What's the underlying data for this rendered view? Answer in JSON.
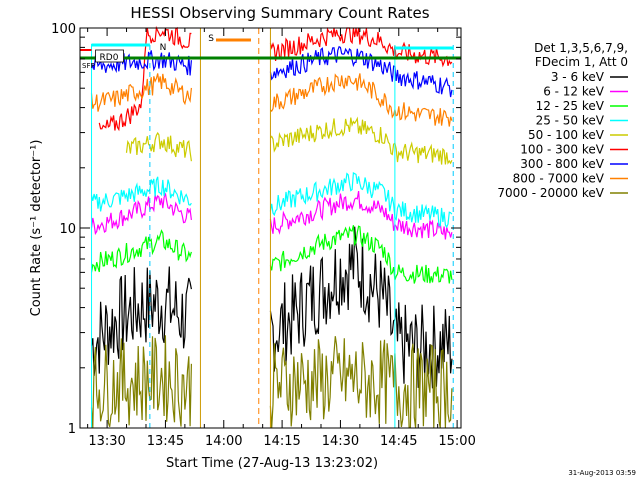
{
  "chart_data": {
    "type": "line",
    "title": "HESSI Observing Summary Count Rates",
    "xlabel": "Start Time (27-Aug-13 13:23:02)",
    "ylabel": "Count Rate (s⁻¹ detector⁻¹)",
    "y_scale": "log",
    "ylim": [
      1,
      100
    ],
    "xlim": [
      "13:23:02",
      "15:01:00"
    ],
    "x_ticks": [
      "13:30",
      "13:45",
      "14:00",
      "14:15",
      "14:30",
      "14:45",
      "15:00"
    ],
    "y_ticks": [
      "1",
      "10",
      "100"
    ],
    "grid": false,
    "legend_position": "right",
    "legend_header": [
      "Det 1,3,5,6,7,9,",
      "FDecim 1, Att 0"
    ],
    "timestamp": "31-Aug-2013 03:59",
    "annotations": {
      "rd_label": "RD0",
      "n_label": "N",
      "s_label": "S",
      "sfp_label": "SFP"
    },
    "data_gaps": [
      [
        "13:54",
        "14:12"
      ]
    ],
    "series": [
      {
        "name": "3 - 6 keV",
        "color": "#000000",
        "x": [
          "13:26",
          "13:32",
          "13:38",
          "13:44",
          "13:48",
          "13:52",
          "14:12",
          "14:15",
          "14:18",
          "14:22",
          "14:26",
          "14:30",
          "14:34",
          "14:38",
          "14:41",
          "14:44",
          "14:50",
          "14:56",
          "14:59"
        ],
        "values": [
          2.6,
          3.4,
          4.0,
          4.3,
          3.8,
          3.4,
          3.0,
          3.3,
          3.6,
          4.4,
          5.1,
          6.2,
          6.6,
          5.2,
          4.4,
          2.6,
          2.5,
          2.6,
          2.6
        ]
      },
      {
        "name": "6 - 12 keV",
        "color": "#ff00ff",
        "x": [
          "13:26",
          "13:32",
          "13:38",
          "13:44",
          "13:48",
          "13:52",
          "14:12",
          "14:15",
          "14:18",
          "14:22",
          "14:26",
          "14:30",
          "14:34",
          "14:38",
          "14:41",
          "14:44",
          "14:50",
          "14:56",
          "14:59"
        ],
        "values": [
          10.2,
          11.0,
          12.2,
          13.8,
          12.2,
          11.0,
          10.2,
          10.6,
          11.2,
          11.8,
          12.6,
          13.4,
          14.0,
          12.9,
          12.2,
          10.4,
          10.0,
          9.6,
          9.2
        ]
      },
      {
        "name": "12 - 25 keV",
        "color": "#00ff00",
        "x": [
          "13:26",
          "13:32",
          "13:38",
          "13:44",
          "13:48",
          "13:52",
          "14:12",
          "14:15",
          "14:18",
          "14:22",
          "14:26",
          "14:30",
          "14:34",
          "14:38",
          "14:41",
          "14:44",
          "14:50",
          "14:56",
          "14:59"
        ],
        "values": [
          6.6,
          7.1,
          7.9,
          8.7,
          7.8,
          7.0,
          6.4,
          6.8,
          7.3,
          7.9,
          8.5,
          9.0,
          9.3,
          8.4,
          7.8,
          6.0,
          5.9,
          5.8,
          5.8
        ]
      },
      {
        "name": "25 - 50 keV",
        "color": "#00ffff",
        "x": [
          "13:26",
          "13:32",
          "13:38",
          "13:44",
          "13:48",
          "13:52",
          "14:12",
          "14:15",
          "14:18",
          "14:22",
          "14:26",
          "14:30",
          "14:34",
          "14:38",
          "14:41",
          "14:44",
          "14:50",
          "14:56",
          "14:59"
        ],
        "values": [
          13.2,
          14.0,
          15.0,
          16.4,
          14.8,
          13.6,
          12.8,
          13.3,
          14.0,
          14.8,
          15.6,
          16.6,
          17.2,
          15.8,
          15.0,
          12.4,
          11.8,
          11.4,
          11.2
        ]
      },
      {
        "name": "50 - 100 keV",
        "color": "#cccc00",
        "x": [
          "13:35",
          "13:40",
          "13:44",
          "13:48",
          "13:52",
          "14:12",
          "14:16",
          "14:20",
          "14:24",
          "14:28",
          "14:32",
          "14:36",
          "14:41",
          "14:44",
          "14:50",
          "14:56",
          "14:59"
        ],
        "values": [
          24.6,
          26.2,
          27.5,
          25.2,
          24.0,
          26.0,
          27.6,
          28.8,
          30.4,
          31.6,
          32.5,
          31.0,
          29.0,
          24.0,
          23.6,
          23.2,
          23.0
        ]
      },
      {
        "name": "100 - 300 keV",
        "color": "#ff0000",
        "x": [
          "13:28",
          "13:32",
          "13:36",
          "13:39",
          "13:40",
          "13:44",
          "13:48",
          "13:52",
          "14:12",
          "14:16",
          "14:20",
          "14:24",
          "14:28",
          "14:32",
          "14:36",
          "14:41",
          "14:44",
          "14:50",
          "14:56",
          "14:59"
        ],
        "values": [
          30.0,
          33.0,
          37.0,
          42.0,
          92.0,
          98.0,
          90.0,
          84.0,
          75.0,
          79.0,
          83.0,
          88.0,
          93.0,
          95.0,
          92.0,
          85.0,
          76.0,
          73.0,
          71.0,
          70.0
        ]
      },
      {
        "name": "300 - 800 keV",
        "color": "#0000ff",
        "x": [
          "13:26",
          "13:32",
          "13:38",
          "13:44",
          "13:48",
          "13:52",
          "14:12",
          "14:16",
          "14:20",
          "14:24",
          "14:28",
          "14:32",
          "14:36",
          "14:41",
          "14:44",
          "14:50",
          "14:56",
          "14:59"
        ],
        "values": [
          64.0,
          66.0,
          68.0,
          70.0,
          67.0,
          64.0,
          60.0,
          63.0,
          66.0,
          70.0,
          73.0,
          74.0,
          71.0,
          64.0,
          58.0,
          55.0,
          52.0,
          50.0
        ]
      },
      {
        "name": "800 - 7000 keV",
        "color": "#ff8000",
        "x": [
          "13:26",
          "13:32",
          "13:36",
          "13:40",
          "13:44",
          "13:48",
          "13:52",
          "14:12",
          "14:16",
          "14:20",
          "14:24",
          "14:28",
          "14:32",
          "14:36",
          "14:41",
          "14:44",
          "14:50",
          "14:56",
          "14:59"
        ],
        "values": [
          42.0,
          44.0,
          47.0,
          50.0,
          54.0,
          49.0,
          45.0,
          42.0,
          44.0,
          47.0,
          50.0,
          54.0,
          56.0,
          52.0,
          44.0,
          39.0,
          37.0,
          36.0,
          36.0
        ]
      },
      {
        "name": "7000 - 20000 keV",
        "color": "#808000",
        "x": [
          "13:26",
          "13:32",
          "13:38",
          "13:44",
          "13:48",
          "13:52",
          "14:12",
          "14:18",
          "14:24",
          "14:30",
          "14:36",
          "14:41",
          "14:44",
          "14:50",
          "14:56",
          "14:59"
        ],
        "values": [
          1.6,
          1.7,
          1.7,
          1.8,
          1.7,
          1.6,
          1.6,
          1.7,
          1.7,
          1.8,
          1.7,
          1.7,
          1.6,
          1.6,
          1.6,
          1.6
        ]
      }
    ]
  }
}
